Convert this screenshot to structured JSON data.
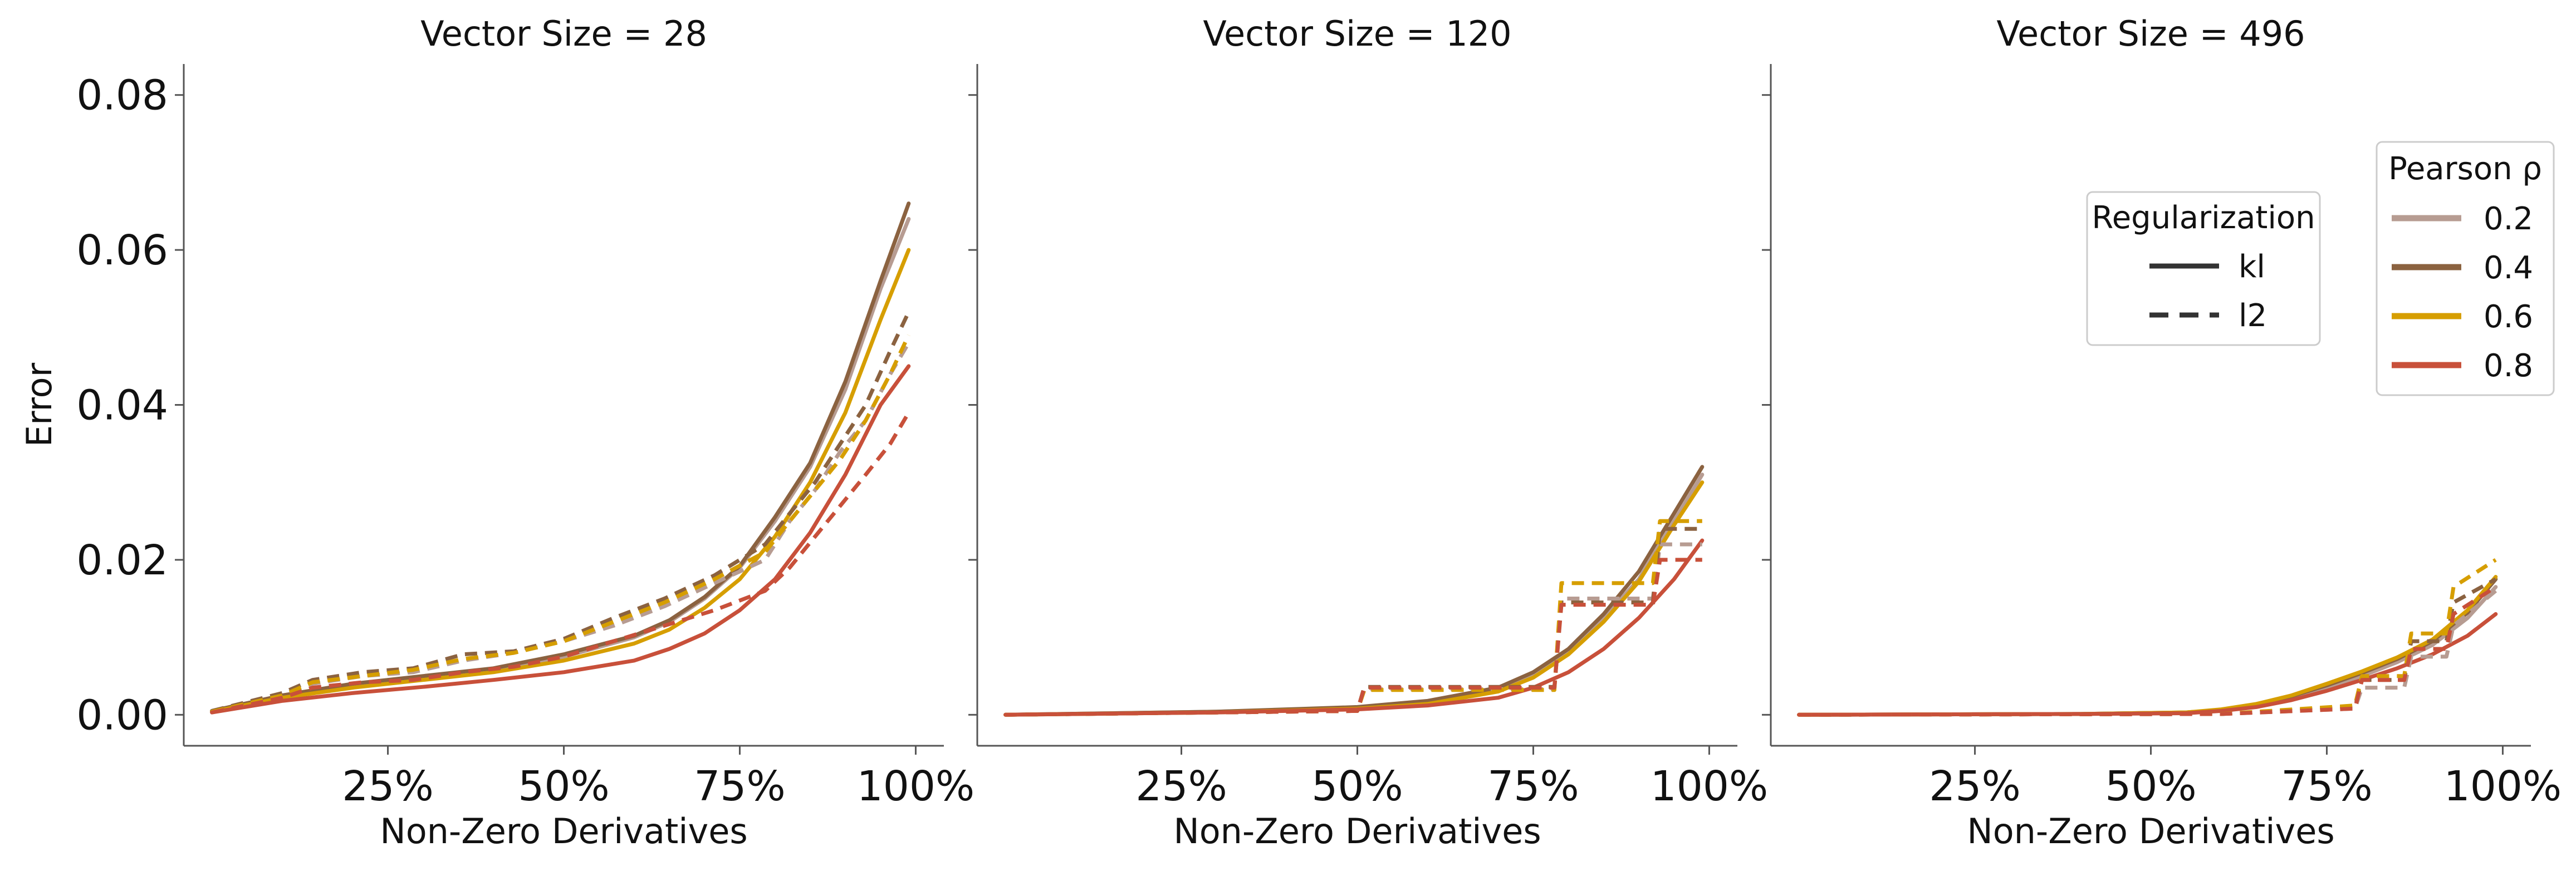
{
  "chart_data": {
    "type": "line",
    "ylabel": "Error",
    "xlabel": "Non-Zero Derivatives",
    "ylim": [
      -0.004,
      0.084
    ],
    "xlim": [
      -0.04,
      1.04
    ],
    "y_ticks": [
      0.0,
      0.02,
      0.04,
      0.06,
      0.08
    ],
    "y_tick_labels": [
      "0.00",
      "0.02",
      "0.04",
      "0.06",
      "0.08"
    ],
    "x_ticks": [
      0.25,
      0.5,
      0.75,
      1.0
    ],
    "x_tick_labels": [
      "25%",
      "50%",
      "75%",
      "100%"
    ],
    "grid": false,
    "legends": {
      "regularization": {
        "title": "Regularization",
        "entries": [
          {
            "label": "kl",
            "dash": "solid"
          },
          {
            "label": "l2",
            "dash": "dashed"
          }
        ]
      },
      "pearson": {
        "title": "Pearson ρ",
        "entries": [
          {
            "label": "0.2",
            "color": "#b79c92"
          },
          {
            "label": "0.4",
            "color": "#8b6240"
          },
          {
            "label": "0.6",
            "color": "#d69e00"
          },
          {
            "label": "0.8",
            "color": "#c8503a"
          }
        ]
      },
      "placement": "right of last panel"
    },
    "panels": [
      {
        "title": "Vector Size = 28",
        "series": [
          {
            "rho": "0.2",
            "reg": "kl",
            "color": "#b79c92",
            "x": [
              0,
              0.1,
              0.2,
              0.3,
              0.4,
              0.5,
              0.6,
              0.65,
              0.7,
              0.75,
              0.8,
              0.85,
              0.9,
              0.95,
              0.99
            ],
            "y": [
              0.0005,
              0.0025,
              0.0038,
              0.0048,
              0.0058,
              0.0075,
              0.01,
              0.012,
              0.015,
              0.019,
              0.025,
              0.032,
              0.042,
              0.055,
              0.064
            ]
          },
          {
            "rho": "0.4",
            "reg": "kl",
            "color": "#8b6240",
            "x": [
              0,
              0.1,
              0.2,
              0.3,
              0.4,
              0.5,
              0.6,
              0.65,
              0.7,
              0.75,
              0.8,
              0.85,
              0.9,
              0.95,
              0.99
            ],
            "y": [
              0.0005,
              0.0025,
              0.004,
              0.005,
              0.006,
              0.0078,
              0.0102,
              0.0122,
              0.0152,
              0.0192,
              0.0255,
              0.0325,
              0.043,
              0.056,
              0.066
            ]
          },
          {
            "rho": "0.6",
            "reg": "kl",
            "color": "#d69e00",
            "x": [
              0,
              0.1,
              0.2,
              0.3,
              0.4,
              0.5,
              0.6,
              0.65,
              0.7,
              0.75,
              0.8,
              0.85,
              0.9,
              0.95,
              0.99
            ],
            "y": [
              0.0004,
              0.0022,
              0.0035,
              0.0045,
              0.0055,
              0.007,
              0.0092,
              0.011,
              0.0138,
              0.0175,
              0.023,
              0.03,
              0.039,
              0.051,
              0.06
            ]
          },
          {
            "rho": "0.8",
            "reg": "kl",
            "color": "#c8503a",
            "x": [
              0,
              0.1,
              0.2,
              0.3,
              0.4,
              0.5,
              0.6,
              0.65,
              0.7,
              0.75,
              0.8,
              0.85,
              0.9,
              0.95,
              0.99
            ],
            "y": [
              0.0003,
              0.0018,
              0.0028,
              0.0036,
              0.0045,
              0.0055,
              0.007,
              0.0085,
              0.0105,
              0.0135,
              0.0175,
              0.0235,
              0.031,
              0.04,
              0.045
            ]
          },
          {
            "rho": "0.2",
            "reg": "l2",
            "color": "#b79c92",
            "x": [
              0,
              0.1,
              0.143,
              0.214,
              0.286,
              0.357,
              0.429,
              0.5,
              0.571,
              0.643,
              0.714,
              0.786,
              0.821,
              0.857,
              0.893,
              0.929,
              0.964,
              0.99
            ],
            "y": [
              0.0004,
              0.0025,
              0.004,
              0.005,
              0.0055,
              0.007,
              0.008,
              0.0095,
              0.0115,
              0.014,
              0.017,
              0.02,
              0.025,
              0.029,
              0.034,
              0.038,
              0.044,
              0.048
            ]
          },
          {
            "rho": "0.4",
            "reg": "l2",
            "color": "#8b6240",
            "x": [
              0,
              0.1,
              0.143,
              0.214,
              0.286,
              0.357,
              0.429,
              0.5,
              0.571,
              0.643,
              0.714,
              0.786,
              0.821,
              0.857,
              0.893,
              0.929,
              0.964,
              0.99
            ],
            "y": [
              0.0005,
              0.0028,
              0.0045,
              0.0055,
              0.006,
              0.0078,
              0.0082,
              0.0098,
              0.0125,
              0.015,
              0.018,
              0.022,
              0.026,
              0.03,
              0.035,
              0.04,
              0.047,
              0.052
            ]
          },
          {
            "rho": "0.6",
            "reg": "l2",
            "color": "#d69e00",
            "x": [
              0,
              0.1,
              0.143,
              0.214,
              0.286,
              0.357,
              0.429,
              0.5,
              0.571,
              0.643,
              0.714,
              0.786,
              0.821,
              0.857,
              0.893,
              0.929,
              0.964,
              0.99
            ],
            "y": [
              0.0004,
              0.0025,
              0.0042,
              0.005,
              0.0058,
              0.0072,
              0.008,
              0.0095,
              0.012,
              0.0145,
              0.0175,
              0.021,
              0.025,
              0.029,
              0.033,
              0.038,
              0.044,
              0.049
            ]
          },
          {
            "rho": "0.8",
            "reg": "l2",
            "color": "#c8503a",
            "x": [
              0,
              0.1,
              0.143,
              0.214,
              0.286,
              0.357,
              0.429,
              0.5,
              0.571,
              0.643,
              0.714,
              0.786,
              0.821,
              0.857,
              0.893,
              0.929,
              0.964,
              0.99
            ],
            "y": [
              0.0003,
              0.0022,
              0.0035,
              0.0042,
              0.0045,
              0.0055,
              0.0062,
              0.0075,
              0.0095,
              0.0115,
              0.0135,
              0.016,
              0.019,
              0.023,
              0.027,
              0.031,
              0.035,
              0.039
            ]
          }
        ]
      },
      {
        "title": "Vector Size = 120",
        "series": [
          {
            "rho": "0.2",
            "reg": "kl",
            "color": "#b79c92",
            "x": [
              0,
              0.3,
              0.5,
              0.6,
              0.7,
              0.75,
              0.8,
              0.85,
              0.9,
              0.95,
              0.99
            ],
            "y": [
              0,
              0.0004,
              0.0009,
              0.0016,
              0.0033,
              0.005,
              0.0082,
              0.0125,
              0.0175,
              0.025,
              0.031
            ]
          },
          {
            "rho": "0.4",
            "reg": "kl",
            "color": "#8b6240",
            "x": [
              0,
              0.3,
              0.5,
              0.6,
              0.7,
              0.75,
              0.8,
              0.85,
              0.9,
              0.95,
              0.99
            ],
            "y": [
              0,
              0.0004,
              0.001,
              0.0018,
              0.0035,
              0.0055,
              0.0085,
              0.013,
              0.0185,
              0.026,
              0.032
            ]
          },
          {
            "rho": "0.6",
            "reg": "kl",
            "color": "#d69e00",
            "x": [
              0,
              0.3,
              0.5,
              0.6,
              0.7,
              0.75,
              0.8,
              0.85,
              0.9,
              0.95,
              0.99
            ],
            "y": [
              0,
              0.0003,
              0.0008,
              0.0014,
              0.003,
              0.0048,
              0.0078,
              0.012,
              0.0172,
              0.0245,
              0.03
            ]
          },
          {
            "rho": "0.8",
            "reg": "kl",
            "color": "#c8503a",
            "x": [
              0,
              0.3,
              0.5,
              0.6,
              0.7,
              0.75,
              0.8,
              0.85,
              0.9,
              0.95,
              0.99
            ],
            "y": [
              0,
              0.0003,
              0.0007,
              0.0012,
              0.0022,
              0.0035,
              0.0055,
              0.0085,
              0.0125,
              0.0175,
              0.0225
            ]
          },
          {
            "rho": "0.2",
            "reg": "l2",
            "color": "#b79c92",
            "x": [
              0,
              0.5,
              0.51,
              0.78,
              0.79,
              0.92,
              0.93,
              0.99
            ],
            "y": [
              0,
              0.0005,
              0.0033,
              0.0033,
              0.015,
              0.015,
              0.022,
              0.022
            ]
          },
          {
            "rho": "0.4",
            "reg": "l2",
            "color": "#8b6240",
            "x": [
              0,
              0.5,
              0.51,
              0.78,
              0.79,
              0.92,
              0.93,
              0.99
            ],
            "y": [
              0,
              0.0005,
              0.0036,
              0.0036,
              0.0145,
              0.0145,
              0.024,
              0.024
            ]
          },
          {
            "rho": "0.6",
            "reg": "l2",
            "color": "#d69e00",
            "x": [
              0,
              0.5,
              0.51,
              0.78,
              0.79,
              0.92,
              0.93,
              0.99
            ],
            "y": [
              0,
              0.0005,
              0.0032,
              0.0032,
              0.017,
              0.017,
              0.025,
              0.025
            ]
          },
          {
            "rho": "0.8",
            "reg": "l2",
            "color": "#c8503a",
            "x": [
              0,
              0.5,
              0.51,
              0.78,
              0.79,
              0.92,
              0.93,
              0.99
            ],
            "y": [
              0,
              0.0005,
              0.0035,
              0.0035,
              0.0142,
              0.0142,
              0.02,
              0.02
            ]
          }
        ]
      },
      {
        "title": "Vector Size = 496",
        "series": [
          {
            "rho": "0.2",
            "reg": "kl",
            "color": "#b79c92",
            "x": [
              0,
              0.4,
              0.55,
              0.6,
              0.65,
              0.7,
              0.75,
              0.8,
              0.85,
              0.9,
              0.95,
              0.99
            ],
            "y": [
              0,
              0.0001,
              0.0003,
              0.0006,
              0.0012,
              0.0022,
              0.0035,
              0.005,
              0.0068,
              0.009,
              0.0125,
              0.0165
            ]
          },
          {
            "rho": "0.4",
            "reg": "kl",
            "color": "#8b6240",
            "x": [
              0,
              0.4,
              0.55,
              0.6,
              0.65,
              0.7,
              0.75,
              0.8,
              0.85,
              0.9,
              0.95,
              0.99
            ],
            "y": [
              0,
              0.0001,
              0.0003,
              0.0006,
              0.0013,
              0.0024,
              0.0038,
              0.0054,
              0.0072,
              0.0095,
              0.0132,
              0.0175
            ]
          },
          {
            "rho": "0.6",
            "reg": "kl",
            "color": "#d69e00",
            "x": [
              0,
              0.4,
              0.55,
              0.6,
              0.65,
              0.7,
              0.75,
              0.8,
              0.85,
              0.9,
              0.95,
              0.99
            ],
            "y": [
              0,
              0.0001,
              0.0003,
              0.0007,
              0.0014,
              0.0025,
              0.004,
              0.0056,
              0.0074,
              0.0097,
              0.0135,
              0.0178
            ]
          },
          {
            "rho": "0.8",
            "reg": "kl",
            "color": "#c8503a",
            "x": [
              0,
              0.4,
              0.55,
              0.6,
              0.65,
              0.7,
              0.75,
              0.8,
              0.85,
              0.9,
              0.95,
              0.99
            ],
            "y": [
              0,
              0.0001,
              0.0002,
              0.0005,
              0.001,
              0.0019,
              0.0031,
              0.0045,
              0.006,
              0.0078,
              0.0102,
              0.013
            ]
          },
          {
            "rho": "0.2",
            "reg": "l2",
            "color": "#b79c92",
            "x": [
              0,
              0.6,
              0.79,
              0.8,
              0.86,
              0.87,
              0.92,
              0.93,
              0.99
            ],
            "y": [
              0,
              0.0001,
              0.0008,
              0.0035,
              0.0035,
              0.0075,
              0.0075,
              0.0115,
              0.016
            ]
          },
          {
            "rho": "0.4",
            "reg": "l2",
            "color": "#8b6240",
            "x": [
              0,
              0.6,
              0.79,
              0.8,
              0.86,
              0.87,
              0.92,
              0.93,
              0.99
            ],
            "y": [
              0,
              0.0001,
              0.001,
              0.0045,
              0.0045,
              0.0095,
              0.0095,
              0.0145,
              0.0175
            ]
          },
          {
            "rho": "0.6",
            "reg": "l2",
            "color": "#d69e00",
            "x": [
              0,
              0.6,
              0.79,
              0.8,
              0.86,
              0.87,
              0.92,
              0.93,
              0.99
            ],
            "y": [
              0,
              0.0001,
              0.0012,
              0.005,
              0.005,
              0.0105,
              0.0105,
              0.0165,
              0.02
            ]
          },
          {
            "rho": "0.8",
            "reg": "l2",
            "color": "#c8503a",
            "x": [
              0,
              0.6,
              0.79,
              0.8,
              0.86,
              0.87,
              0.92,
              0.93,
              0.99
            ],
            "y": [
              0,
              0.0001,
              0.0008,
              0.0045,
              0.0045,
              0.0085,
              0.0085,
              0.013,
              0.0165
            ]
          }
        ]
      }
    ]
  }
}
